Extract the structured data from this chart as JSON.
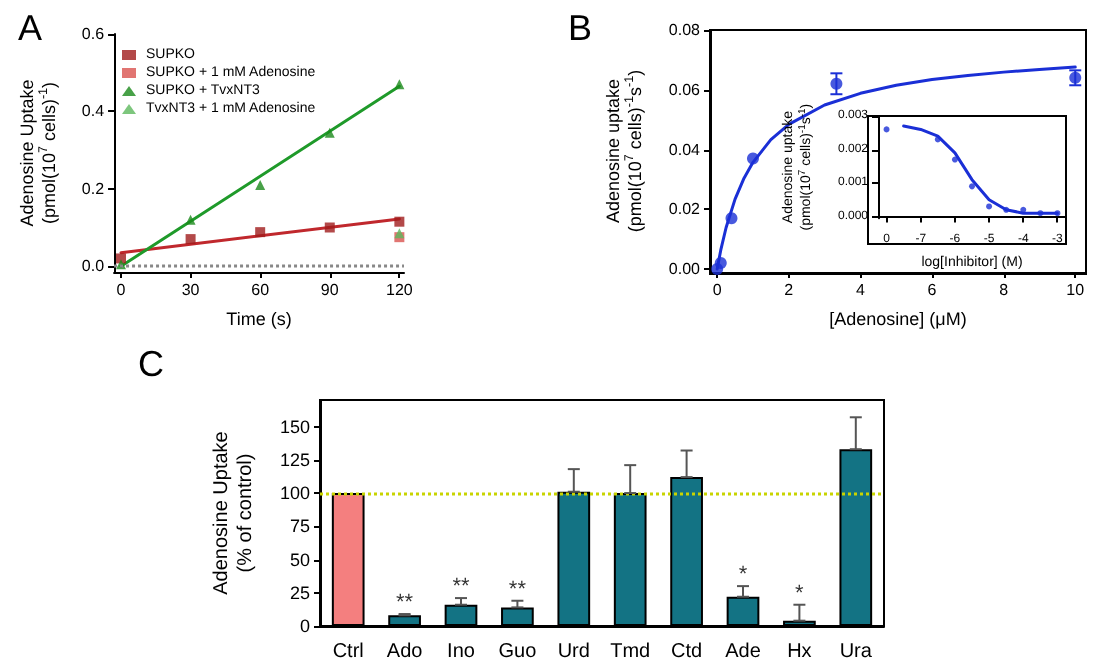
{
  "chart_data": [
    {
      "type": "scatter",
      "title": "A",
      "xlabel": "Time (s)",
      "ylabel": "Adenosine Uptake\n(pmol(10$^{7}$ cells)$^{-1}$)",
      "x": [
        0,
        30,
        60,
        90,
        120
      ],
      "xlim": [
        -3,
        122
      ],
      "xticks": [
        0,
        30,
        60,
        90,
        120
      ],
      "ylim": [
        -0.015,
        0.6
      ],
      "yticks": [
        {
          "value": 0,
          "label": "0.0"
        },
        0.2,
        0.4,
        0.6
      ],
      "grid": false,
      "legend": "top left",
      "ref_lines": [
        {
          "axis": "y",
          "value": 0,
          "color": "#888888",
          "line_style": "dotted"
        }
      ],
      "series": [
        {
          "name": "SUPKO",
          "color": "#a01c1c",
          "marker": "square",
          "values": [
            0.02,
            0.07,
            0.088,
            0.1,
            0.115
          ]
        },
        {
          "name": "SUPKO + 1 mM Adenosine",
          "color": "#d9534f",
          "marker": "square",
          "x": [
            120
          ],
          "values": [
            0.075
          ]
        },
        {
          "name": "SUPKO + TvxNT3",
          "color": "#1a8a1a",
          "marker": "triangle",
          "values": [
            0.005,
            0.12,
            0.21,
            0.345,
            0.47
          ]
        },
        {
          "name": "TvxNT3 + 1 mM Adenosine",
          "color": "#5cb85c",
          "marker": "triangle",
          "x": [
            120
          ],
          "values": [
            0.085
          ]
        },
        {
          "type": "line",
          "color": "#c0282d",
          "marker": "none",
          "x": [
            0,
            120
          ],
          "values": [
            0.035,
            0.122
          ]
        },
        {
          "type": "line",
          "color": "#1f9a2a",
          "marker": "none",
          "x": [
            0,
            120
          ],
          "values": [
            0.0,
            0.465
          ]
        }
      ]
    },
    {
      "type": "scatter",
      "title": "B",
      "xlabel": "[Adenosine] (μM)",
      "ylabel": "Adenosine uptake\n(pmol(10$^{7}$ cells)$^{-1}$s$^{-1}$)",
      "xlim": [
        -0.2,
        10.3
      ],
      "xticks": [
        0,
        2,
        4,
        6,
        8,
        10
      ],
      "ylim": [
        -0.001,
        0.08
      ],
      "yticks": [
        {
          "value": 0,
          "label": "0.00"
        },
        {
          "value": 0.02,
          "label": "0.02"
        },
        {
          "value": 0.04,
          "label": "0.04"
        },
        {
          "value": 0.06,
          "label": "0.06"
        },
        {
          "value": 0.08,
          "label": "0.08"
        }
      ],
      "grid": false,
      "series": [
        {
          "color": "#1a2fd6",
          "marker": "circle",
          "x": [
            0,
            0.1,
            0.4,
            1,
            3.33,
            10
          ],
          "values": [
            0,
            0.002,
            0.017,
            0.037,
            0.062,
            0.064
          ],
          "errors": [
            null,
            null,
            null,
            null,
            0.0035,
            0.0025
          ]
        },
        {
          "type": "line",
          "color": "#1a2fd6",
          "marker": "none",
          "x": [
            0,
            0.1,
            0.25,
            0.5,
            0.75,
            1,
            1.5,
            2,
            3,
            4,
            5,
            6,
            7,
            8,
            9,
            10
          ],
          "values": [
            0,
            0.0063,
            0.0139,
            0.0234,
            0.0304,
            0.0357,
            0.0433,
            0.0484,
            0.0549,
            0.0588,
            0.0615,
            0.0634,
            0.0648,
            0.0659,
            0.0668,
            0.0676
          ]
        }
      ]
    },
    {
      "type": "scatter",
      "xlabel": "log[Inhibitor] (M)",
      "ylabel": "Adenosine uptake\n(pmol(10$^{7}$ cells)$^{-1}$s$^{-1}$)",
      "categories": [
        "0",
        null,
        "-7",
        null,
        "-6",
        null,
        "-5",
        null,
        "-4",
        null,
        "-3"
      ],
      "ylim": [
        -5e-05,
        0.003
      ],
      "yticks": [
        {
          "value": 0,
          "label": "0.000"
        },
        {
          "value": 0.001,
          "label": "0.001"
        },
        {
          "value": 0.002,
          "label": "0.002"
        },
        {
          "value": 0.003,
          "label": "0.003"
        }
      ],
      "grid": false,
      "series": [
        {
          "color": "#1a2fd6",
          "marker": "circle",
          "values": [
            0.0026,
            null,
            null,
            0.0023,
            0.0017,
            0.0009,
            0.0003,
            0.0002,
            0.0002,
            0.0001,
            0.0001
          ]
        },
        {
          "type": "line",
          "color": "#1a2fd6",
          "marker": "none",
          "values": [
            null,
            0.0027,
            0.0026,
            0.0024,
            0.0019,
            0.0011,
            0.0005,
            0.0002,
            0.0001,
            0.0001,
            0.0001
          ]
        }
      ]
    },
    {
      "type": "bar",
      "title": "C",
      "ylabel": "Adenosine Uptake\n(% of control)",
      "categories": [
        "Ctrl",
        "Ado",
        "Ino",
        "Guo",
        "Urd",
        "Tmd",
        "Ctd",
        "Ade",
        "Hx",
        "Ura"
      ],
      "values": [
        100,
        8,
        16,
        14,
        101,
        100,
        112,
        22,
        4,
        133
      ],
      "colors": [
        "#f47f7f",
        "#137384",
        "#137384",
        "#137384",
        "#137384",
        "#137384",
        "#137384",
        "#137384",
        "#137384",
        "#137384"
      ],
      "errors": [
        null,
        [
          8,
          9
        ],
        [
          16,
          21
        ],
        [
          14,
          19
        ],
        [
          101,
          118
        ],
        [
          100,
          121
        ],
        [
          112,
          132
        ],
        [
          22,
          30
        ],
        [
          4,
          16
        ],
        [
          133,
          157
        ]
      ],
      "ylim": [
        0,
        170
      ],
      "yticks": [
        0,
        25,
        50,
        75,
        100,
        125,
        150
      ],
      "grid": false,
      "ref_lines": [
        {
          "axis": "y",
          "value": 100,
          "color": "#c8d400",
          "line_style": "dotted"
        }
      ],
      "annotations": [
        {
          "text": "**",
          "x": "Ado",
          "y": 9
        },
        {
          "text": "**",
          "x": "Ino",
          "y": 21
        },
        {
          "text": "**",
          "x": "Guo",
          "y": 19
        },
        {
          "text": "*",
          "x": "Ade",
          "y": 30
        },
        {
          "text": "*",
          "x": "Hx",
          "y": 16
        }
      ]
    }
  ]
}
